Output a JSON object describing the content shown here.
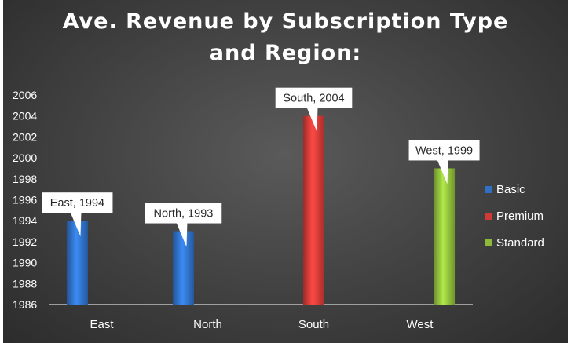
{
  "chart_data": {
    "type": "bar",
    "title_lines": [
      "Ave. Revenue by Subscription Type",
      "and Region:"
    ],
    "categories": [
      "East",
      "North",
      "South",
      "West"
    ],
    "series": [
      {
        "name": "Basic",
        "color": "#2f6fc4",
        "values": [
          1994,
          1993,
          null,
          null
        ]
      },
      {
        "name": "Premium",
        "color": "#d03a36",
        "values": [
          null,
          null,
          2004,
          null
        ]
      },
      {
        "name": "Standard",
        "color": "#8dba3a",
        "values": [
          null,
          null,
          null,
          1999
        ]
      }
    ],
    "data_labels": [
      "East, 1994",
      "North, 1993",
      "South, 2004",
      "West, 1999"
    ],
    "ylim": [
      1986,
      2006
    ],
    "yticks": [
      1986,
      1988,
      1990,
      1992,
      1994,
      1996,
      1998,
      2000,
      2002,
      2004,
      2006
    ],
    "grid": false,
    "legend_position": "right"
  }
}
